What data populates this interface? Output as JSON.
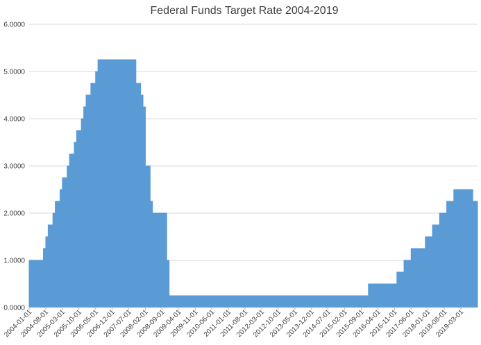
{
  "chart_data": {
    "type": "area",
    "title": "Federal Funds Target Rate 2004-2019",
    "xlabel": "",
    "ylabel": "",
    "ylim": [
      0,
      6
    ],
    "y_ticks": [
      "0.0000",
      "1.0000",
      "2.0000",
      "3.0000",
      "4.0000",
      "5.0000",
      "6.0000"
    ],
    "x_tick_labels": [
      "2004-01-01",
      "2004-08-01",
      "2005-03-01",
      "2005-10-01",
      "2006-05-01",
      "2006-12-01",
      "2007-07-01",
      "2008-02-01",
      "2008-09-01",
      "2009-04-01",
      "2009-11-01",
      "2010-06-01",
      "2011-01-01",
      "2011-08-01",
      "2012-03-01",
      "2012-10-01",
      "2013-05-01",
      "2013-12-01",
      "2014-07-01",
      "2015-02-01",
      "2015-09-01",
      "2016-04-01",
      "2016-11-01",
      "2017-06-01",
      "2018-01-01",
      "2018-08-01",
      "2019-03-01"
    ],
    "grid": true,
    "fill_color": "#5b9bd5",
    "series": [
      {
        "x": [
          "2004-01-01",
          "2004-06-01",
          "2004-07-01",
          "2004-08-01",
          "2004-09-01",
          "2004-11-01",
          "2004-12-01",
          "2005-02-01",
          "2005-03-01",
          "2005-05-01",
          "2005-06-01",
          "2005-08-01",
          "2005-09-01",
          "2005-11-01",
          "2005-12-01",
          "2006-01-01",
          "2006-03-01",
          "2006-05-01",
          "2006-06-01",
          "2007-09-01",
          "2007-10-01",
          "2007-12-01",
          "2008-01-01",
          "2008-02-01",
          "2008-03-01",
          "2008-04-01",
          "2008-05-01",
          "2008-10-01",
          "2008-11-01",
          "2008-12-01",
          "2015-12-01",
          "2016-12-01",
          "2017-03-01",
          "2017-06-01",
          "2017-12-01",
          "2018-03-01",
          "2018-06-01",
          "2018-09-01",
          "2018-12-01",
          "2019-07-01",
          "2019-08-01",
          "2019-09-01"
        ],
        "values": [
          1.0,
          1.0,
          1.25,
          1.5,
          1.75,
          2.0,
          2.25,
          2.5,
          2.75,
          3.0,
          3.25,
          3.5,
          3.75,
          4.0,
          4.25,
          4.5,
          4.75,
          5.0,
          5.25,
          5.25,
          4.75,
          4.5,
          4.25,
          3.0,
          3.0,
          2.25,
          2.0,
          2.0,
          1.0,
          0.25,
          0.5,
          0.75,
          1.0,
          1.25,
          1.5,
          1.75,
          2.0,
          2.25,
          2.5,
          2.5,
          2.25,
          2.25
        ]
      }
    ]
  }
}
